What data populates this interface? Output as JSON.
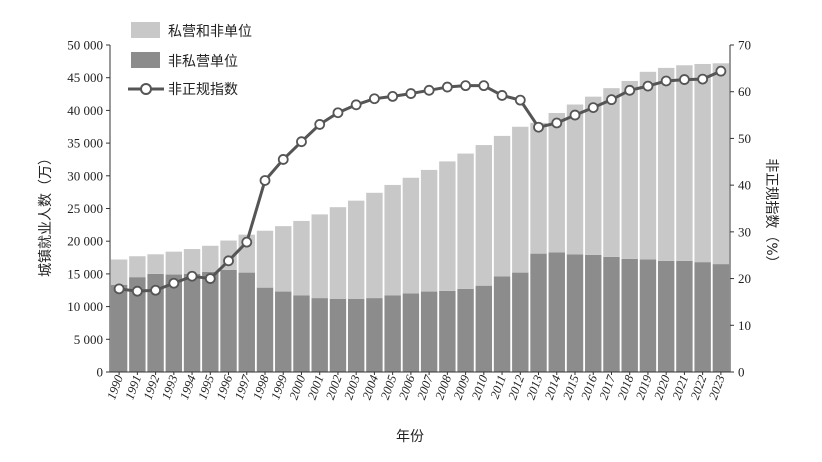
{
  "chart_data": {
    "type": "bar",
    "stacked": true,
    "xlabel": "年份",
    "ylabel": "城镇就业人数（万）",
    "y2label": "非正规指数（%）",
    "ylim": [
      0,
      50000
    ],
    "y2lim": [
      0,
      70
    ],
    "yticks": [
      "0",
      "5 000",
      "10 000",
      "15 000",
      "20 000",
      "25 000",
      "30 000",
      "35 000",
      "40 000",
      "45 000",
      "50 000"
    ],
    "y2ticks": [
      "0",
      "10",
      "20",
      "30",
      "40",
      "50",
      "60",
      "70"
    ],
    "legend_position": "top-left",
    "categories": [
      "1990",
      "1991",
      "1992",
      "1993",
      "1994",
      "1995",
      "1996",
      "1997",
      "1998",
      "1999",
      "2000",
      "2001",
      "2002",
      "2003",
      "2004",
      "2005",
      "2006",
      "2007",
      "2008",
      "2009",
      "2010",
      "2011",
      "2012",
      "2013",
      "2014",
      "2015",
      "2016",
      "2017",
      "2018",
      "2019",
      "2020",
      "2021",
      "2022",
      "2023"
    ],
    "series": [
      {
        "name": "私营和非单位",
        "kind": "bar",
        "color": "#c8c8c8",
        "values": [
          3900,
          3200,
          3000,
          3500,
          3800,
          4000,
          4500,
          5800,
          8700,
          10000,
          11400,
          12800,
          14000,
          15000,
          16100,
          16900,
          17700,
          18600,
          19800,
          20700,
          21500,
          21500,
          22300,
          20000,
          21300,
          22900,
          24200,
          25800,
          27200,
          28700,
          29500,
          29900,
          30300,
          30700
        ]
      },
      {
        "name": "非私营单位",
        "kind": "bar",
        "color": "#8c8c8c",
        "values": [
          13300,
          14500,
          15000,
          14900,
          15000,
          15300,
          15600,
          15200,
          12900,
          12300,
          11700,
          11300,
          11200,
          11200,
          11300,
          11700,
          12000,
          12300,
          12400,
          12700,
          13200,
          14600,
          15200,
          18100,
          18300,
          18000,
          17900,
          17600,
          17300,
          17200,
          17000,
          17000,
          16800,
          16500
        ]
      },
      {
        "name": "非正规指数",
        "kind": "line",
        "axis": "right",
        "color": "#555555",
        "values": [
          17.8,
          17.3,
          17.5,
          19.0,
          20.5,
          20.0,
          23.8,
          27.8,
          41.0,
          45.5,
          49.3,
          53.0,
          55.5,
          57.2,
          58.5,
          59.0,
          59.6,
          60.3,
          61.0,
          61.3,
          61.3,
          59.2,
          58.2,
          52.4,
          53.3,
          55.0,
          56.6,
          58.3,
          60.3,
          61.2,
          62.3,
          62.6,
          62.7,
          64.4
        ]
      }
    ]
  }
}
